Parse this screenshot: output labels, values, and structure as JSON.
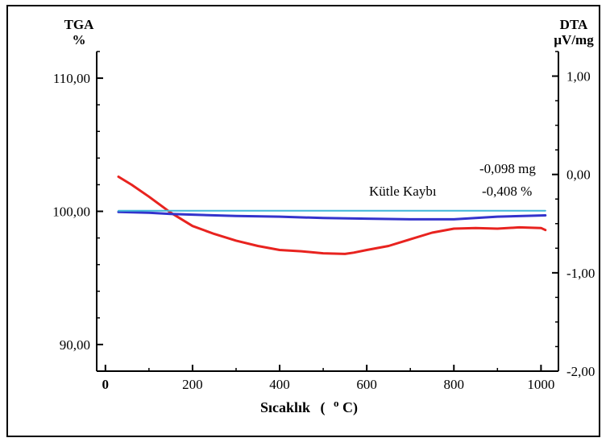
{
  "chart_data": {
    "type": "line",
    "y_left_label_1": "TGA",
    "y_left_label_2": "%",
    "y_right_label_1": "DTA",
    "y_right_label_2": "µV/mg",
    "xlabel_main": "Sıcaklık",
    "xlabel_open": "(",
    "xlabel_degree": "o",
    "xlabel_unit": "C)",
    "x_ticks": [
      "0",
      "200",
      "400",
      "600",
      "800",
      "1000"
    ],
    "x_tick_values": [
      0,
      200,
      400,
      600,
      800,
      1000
    ],
    "left_ticks": [
      "110,00",
      "100,00",
      "90,00"
    ],
    "left_tick_values": [
      110,
      100,
      90
    ],
    "right_ticks": [
      "1,00",
      "0,00",
      "-1,00",
      "-2,00"
    ],
    "right_tick_values": [
      1.0,
      0.0,
      -1.0,
      -2.0
    ],
    "xlim": [
      -20,
      1040
    ],
    "ylim_left": [
      88,
      112
    ],
    "ylim_right": [
      -2,
      1.25
    ],
    "annotations": {
      "mass_loss_mg": "-0,098 mg",
      "label": "Kütle Kaybı",
      "mass_loss_pct": "-0,408 %"
    },
    "series": [
      {
        "axis": "left",
        "color": "#e8231f",
        "x": [
          30,
          60,
          100,
          150,
          200,
          250,
          300,
          350,
          400,
          450,
          500,
          550,
          570,
          600,
          650,
          700,
          750,
          800,
          850,
          900,
          950,
          1000,
          1010
        ],
        "values": [
          102.6,
          102.0,
          101.1,
          99.9,
          98.9,
          98.3,
          97.8,
          97.4,
          97.1,
          97.0,
          96.85,
          96.8,
          96.9,
          97.1,
          97.4,
          97.9,
          98.4,
          98.7,
          98.75,
          98.7,
          98.8,
          98.75,
          98.6
        ]
      },
      {
        "axis": "left",
        "color": "#3333cc",
        "x": [
          30,
          100,
          150,
          200,
          300,
          400,
          500,
          600,
          700,
          800,
          900,
          1010
        ],
        "values": [
          99.95,
          99.9,
          99.8,
          99.75,
          99.65,
          99.6,
          99.5,
          99.45,
          99.4,
          99.4,
          99.6,
          99.7
        ]
      },
      {
        "axis": "left",
        "color": "#3fb6d8",
        "x": [
          30,
          1010
        ],
        "values": [
          100.05,
          100.05
        ]
      }
    ]
  }
}
